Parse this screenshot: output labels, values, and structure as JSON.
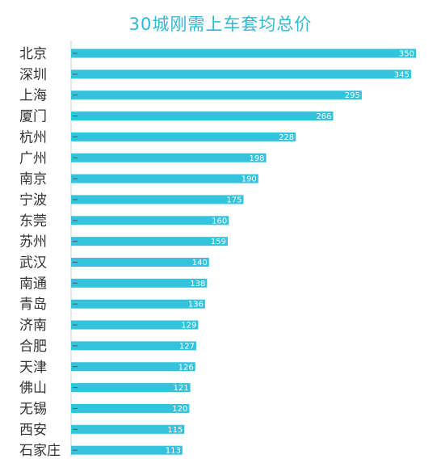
{
  "chart_data": {
    "type": "bar",
    "orientation": "horizontal",
    "title": "30城刚需上车套均总价",
    "xlabel": "",
    "ylabel": "",
    "xlim": [
      0,
      350
    ],
    "grid": false,
    "legend": "none",
    "bar_color": "#34c3dc",
    "title_color": "#32b8d2",
    "categories": [
      "北京",
      "深圳",
      "上海",
      "厦门",
      "杭州",
      "广州",
      "南京",
      "宁波",
      "东莞",
      "苏州",
      "武汉",
      "南通",
      "青岛",
      "济南",
      "合肥",
      "天津",
      "佛山",
      "无锡",
      "西安",
      "石家庄"
    ],
    "values": [
      350,
      345,
      295,
      266,
      228,
      198,
      190,
      175,
      160,
      159,
      140,
      138,
      136,
      129,
      127,
      126,
      121,
      120,
      115,
      113
    ]
  }
}
